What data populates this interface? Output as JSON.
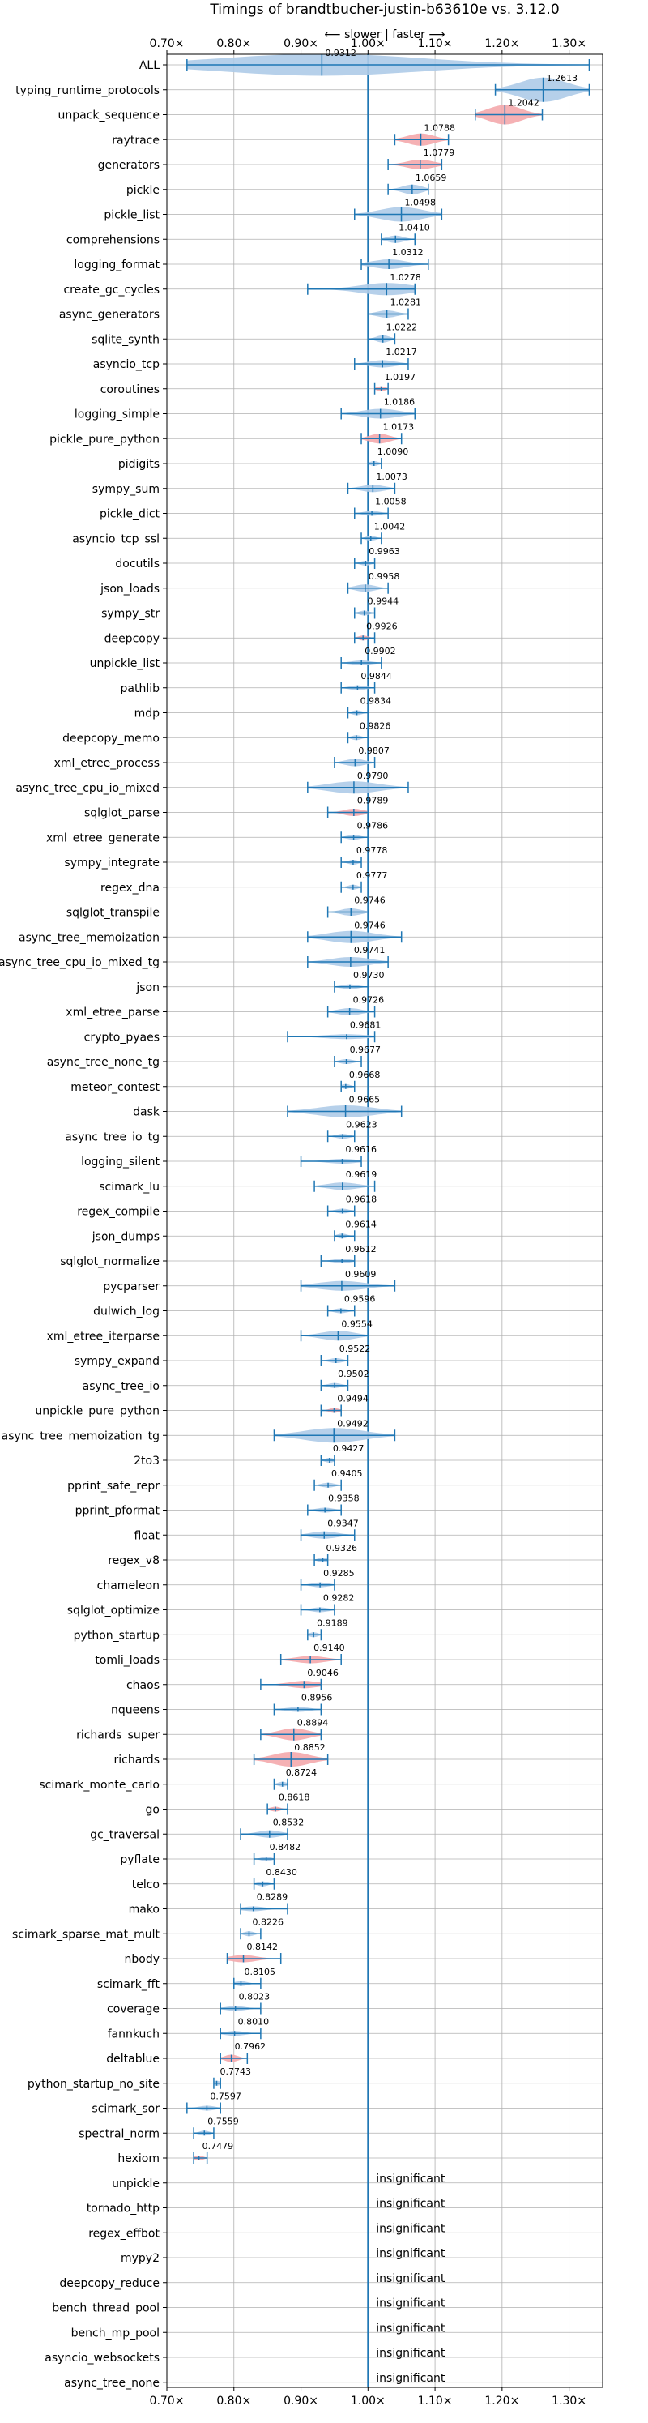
{
  "chart_data": {
    "type": "violin",
    "title": "Timings of brandtbucher-justin-b63610e vs. 3.12.0",
    "subtitle": "⟵ slower | faster ⟶",
    "xlim": [
      0.7,
      1.35
    ],
    "xticks": [
      "0.70×",
      "0.80×",
      "0.90×",
      "1.00×",
      "1.10×",
      "1.20×",
      "1.30×"
    ],
    "xtick_values": [
      0.7,
      0.8,
      0.9,
      1.0,
      1.1,
      1.2,
      1.3
    ],
    "reference_line": 1.0,
    "grid": true,
    "colors": {
      "faster": "#aecbe8",
      "slower": "#f4a8ac",
      "line": "#1f77b4",
      "grid": "#b0b0b0"
    },
    "benchmarks": [
      {
        "name": "ALL",
        "value": 0.9312,
        "label": "0.9312",
        "min": 0.73,
        "max": 1.33,
        "width": 0.09,
        "color": "blue"
      },
      {
        "name": "typing_runtime_protocols",
        "value": 1.2613,
        "label": "1.2613",
        "min": 1.19,
        "max": 1.33,
        "width": 0.1,
        "color": "blue"
      },
      {
        "name": "unpack_sequence",
        "value": 1.2042,
        "label": "1.2042",
        "min": 1.16,
        "max": 1.26,
        "width": 0.08,
        "color": "red"
      },
      {
        "name": "raytrace",
        "value": 1.0788,
        "label": "1.0788",
        "min": 1.04,
        "max": 1.12,
        "width": 0.05,
        "color": "red"
      },
      {
        "name": "generators",
        "value": 1.0779,
        "label": "1.0779",
        "min": 1.03,
        "max": 1.11,
        "width": 0.04,
        "color": "red"
      },
      {
        "name": "pickle",
        "value": 1.0659,
        "label": "1.0659",
        "min": 1.03,
        "max": 1.09,
        "width": 0.04,
        "color": "blue"
      },
      {
        "name": "pickle_list",
        "value": 1.0498,
        "label": "1.0498",
        "min": 0.98,
        "max": 1.11,
        "width": 0.06,
        "color": "blue"
      },
      {
        "name": "comprehensions",
        "value": 1.041,
        "label": "1.0410",
        "min": 1.02,
        "max": 1.07,
        "width": 0.03,
        "color": "blue"
      },
      {
        "name": "logging_format",
        "value": 1.0312,
        "label": "1.0312",
        "min": 0.99,
        "max": 1.09,
        "width": 0.04,
        "color": "blue"
      },
      {
        "name": "create_gc_cycles",
        "value": 1.0278,
        "label": "1.0278",
        "min": 0.91,
        "max": 1.07,
        "width": 0.05,
        "color": "blue"
      },
      {
        "name": "async_generators",
        "value": 1.0281,
        "label": "1.0281",
        "min": 1.0,
        "max": 1.06,
        "width": 0.03,
        "color": "blue"
      },
      {
        "name": "sqlite_synth",
        "value": 1.0222,
        "label": "1.0222",
        "min": 1.0,
        "max": 1.04,
        "width": 0.03,
        "color": "blue"
      },
      {
        "name": "asyncio_tcp",
        "value": 1.0217,
        "label": "1.0217",
        "min": 0.98,
        "max": 1.06,
        "width": 0.03,
        "color": "blue"
      },
      {
        "name": "coroutines",
        "value": 1.0197,
        "label": "1.0197",
        "min": 1.01,
        "max": 1.03,
        "width": 0.02,
        "color": "red"
      },
      {
        "name": "logging_simple",
        "value": 1.0186,
        "label": "1.0186",
        "min": 0.96,
        "max": 1.07,
        "width": 0.04,
        "color": "blue"
      },
      {
        "name": "pickle_pure_python",
        "value": 1.0173,
        "label": "1.0173",
        "min": 0.99,
        "max": 1.05,
        "width": 0.04,
        "color": "red"
      },
      {
        "name": "pidigits",
        "value": 1.009,
        "label": "1.0090",
        "min": 1.0,
        "max": 1.02,
        "width": 0.01,
        "color": "blue"
      },
      {
        "name": "sympy_sum",
        "value": 1.0073,
        "label": "1.0073",
        "min": 0.97,
        "max": 1.04,
        "width": 0.03,
        "color": "blue"
      },
      {
        "name": "pickle_dict",
        "value": 1.0058,
        "label": "1.0058",
        "min": 0.98,
        "max": 1.03,
        "width": 0.02,
        "color": "blue"
      },
      {
        "name": "asyncio_tcp_ssl",
        "value": 1.0042,
        "label": "1.0042",
        "min": 0.99,
        "max": 1.02,
        "width": 0.02,
        "color": "blue"
      },
      {
        "name": "docutils",
        "value": 0.9963,
        "label": "0.9963",
        "min": 0.98,
        "max": 1.01,
        "width": 0.02,
        "color": "blue"
      },
      {
        "name": "json_loads",
        "value": 0.9958,
        "label": "0.9958",
        "min": 0.97,
        "max": 1.03,
        "width": 0.03,
        "color": "blue"
      },
      {
        "name": "sympy_str",
        "value": 0.9944,
        "label": "0.9944",
        "min": 0.98,
        "max": 1.01,
        "width": 0.02,
        "color": "blue"
      },
      {
        "name": "deepcopy",
        "value": 0.9926,
        "label": "0.9926",
        "min": 0.98,
        "max": 1.01,
        "width": 0.02,
        "color": "red"
      },
      {
        "name": "unpickle_list",
        "value": 0.9902,
        "label": "0.9902",
        "min": 0.96,
        "max": 1.02,
        "width": 0.02,
        "color": "blue"
      },
      {
        "name": "pathlib",
        "value": 0.9844,
        "label": "0.9844",
        "min": 0.96,
        "max": 1.01,
        "width": 0.02,
        "color": "blue"
      },
      {
        "name": "mdp",
        "value": 0.9834,
        "label": "0.9834",
        "min": 0.97,
        "max": 1.0,
        "width": 0.02,
        "color": "blue"
      },
      {
        "name": "deepcopy_memo",
        "value": 0.9826,
        "label": "0.9826",
        "min": 0.97,
        "max": 1.0,
        "width": 0.02,
        "color": "blue"
      },
      {
        "name": "xml_etree_process",
        "value": 0.9807,
        "label": "0.9807",
        "min": 0.95,
        "max": 1.01,
        "width": 0.03,
        "color": "blue"
      },
      {
        "name": "async_tree_cpu_io_mixed",
        "value": 0.979,
        "label": "0.9790",
        "min": 0.91,
        "max": 1.06,
        "width": 0.05,
        "color": "blue"
      },
      {
        "name": "sqlglot_parse",
        "value": 0.9789,
        "label": "0.9789",
        "min": 0.94,
        "max": 1.0,
        "width": 0.03,
        "color": "red"
      },
      {
        "name": "xml_etree_generate",
        "value": 0.9786,
        "label": "0.9786",
        "min": 0.96,
        "max": 1.0,
        "width": 0.02,
        "color": "blue"
      },
      {
        "name": "sympy_integrate",
        "value": 0.9778,
        "label": "0.9778",
        "min": 0.96,
        "max": 0.99,
        "width": 0.02,
        "color": "blue"
      },
      {
        "name": "regex_dna",
        "value": 0.9777,
        "label": "0.9777",
        "min": 0.96,
        "max": 0.99,
        "width": 0.02,
        "color": "blue"
      },
      {
        "name": "sqlglot_transpile",
        "value": 0.9746,
        "label": "0.9746",
        "min": 0.94,
        "max": 1.0,
        "width": 0.03,
        "color": "blue"
      },
      {
        "name": "async_tree_memoization",
        "value": 0.9746,
        "label": "0.9746",
        "min": 0.91,
        "max": 1.05,
        "width": 0.05,
        "color": "blue"
      },
      {
        "name": "async_tree_cpu_io_mixed_tg",
        "value": 0.9741,
        "label": "0.9741",
        "min": 0.91,
        "max": 1.03,
        "width": 0.04,
        "color": "blue"
      },
      {
        "name": "json",
        "value": 0.973,
        "label": "0.9730",
        "min": 0.95,
        "max": 1.0,
        "width": 0.02,
        "color": "blue"
      },
      {
        "name": "xml_etree_parse",
        "value": 0.9726,
        "label": "0.9726",
        "min": 0.94,
        "max": 1.01,
        "width": 0.03,
        "color": "blue"
      },
      {
        "name": "crypto_pyaes",
        "value": 0.9681,
        "label": "0.9681",
        "min": 0.88,
        "max": 1.01,
        "width": 0.02,
        "color": "blue"
      },
      {
        "name": "async_tree_none_tg",
        "value": 0.9677,
        "label": "0.9677",
        "min": 0.95,
        "max": 0.99,
        "width": 0.02,
        "color": "blue"
      },
      {
        "name": "meteor_contest",
        "value": 0.9668,
        "label": "0.9668",
        "min": 0.96,
        "max": 0.98,
        "width": 0.02,
        "color": "blue"
      },
      {
        "name": "dask",
        "value": 0.9665,
        "label": "0.9665",
        "min": 0.88,
        "max": 1.05,
        "width": 0.05,
        "color": "blue"
      },
      {
        "name": "async_tree_io_tg",
        "value": 0.9623,
        "label": "0.9623",
        "min": 0.94,
        "max": 0.98,
        "width": 0.02,
        "color": "blue"
      },
      {
        "name": "logging_silent",
        "value": 0.9616,
        "label": "0.9616",
        "min": 0.9,
        "max": 0.99,
        "width": 0.02,
        "color": "blue"
      },
      {
        "name": "scimark_lu",
        "value": 0.9619,
        "label": "0.9619",
        "min": 0.92,
        "max": 1.01,
        "width": 0.03,
        "color": "blue"
      },
      {
        "name": "regex_compile",
        "value": 0.9618,
        "label": "0.9618",
        "min": 0.94,
        "max": 0.98,
        "width": 0.02,
        "color": "blue"
      },
      {
        "name": "json_dumps",
        "value": 0.9614,
        "label": "0.9614",
        "min": 0.95,
        "max": 0.98,
        "width": 0.02,
        "color": "blue"
      },
      {
        "name": "sqlglot_normalize",
        "value": 0.9612,
        "label": "0.9612",
        "min": 0.93,
        "max": 0.98,
        "width": 0.02,
        "color": "blue"
      },
      {
        "name": "pycparser",
        "value": 0.9609,
        "label": "0.9609",
        "min": 0.9,
        "max": 1.04,
        "width": 0.04,
        "color": "blue"
      },
      {
        "name": "dulwich_log",
        "value": 0.9596,
        "label": "0.9596",
        "min": 0.94,
        "max": 0.98,
        "width": 0.02,
        "color": "blue"
      },
      {
        "name": "xml_etree_iterparse",
        "value": 0.9554,
        "label": "0.9554",
        "min": 0.9,
        "max": 1.0,
        "width": 0.04,
        "color": "blue"
      },
      {
        "name": "sympy_expand",
        "value": 0.9522,
        "label": "0.9522",
        "min": 0.93,
        "max": 0.97,
        "width": 0.02,
        "color": "blue"
      },
      {
        "name": "async_tree_io",
        "value": 0.9502,
        "label": "0.9502",
        "min": 0.93,
        "max": 0.97,
        "width": 0.02,
        "color": "blue"
      },
      {
        "name": "unpickle_pure_python",
        "value": 0.9494,
        "label": "0.9494",
        "min": 0.93,
        "max": 0.96,
        "width": 0.02,
        "color": "red"
      },
      {
        "name": "async_tree_memoization_tg",
        "value": 0.9492,
        "label": "0.9492",
        "min": 0.86,
        "max": 1.04,
        "width": 0.06,
        "color": "blue"
      },
      {
        "name": "2to3",
        "value": 0.9427,
        "label": "0.9427",
        "min": 0.93,
        "max": 0.95,
        "width": 0.01,
        "color": "blue"
      },
      {
        "name": "pprint_safe_repr",
        "value": 0.9405,
        "label": "0.9405",
        "min": 0.92,
        "max": 0.96,
        "width": 0.02,
        "color": "blue"
      },
      {
        "name": "pprint_pformat",
        "value": 0.9358,
        "label": "0.9358",
        "min": 0.91,
        "max": 0.96,
        "width": 0.02,
        "color": "blue"
      },
      {
        "name": "float",
        "value": 0.9347,
        "label": "0.9347",
        "min": 0.9,
        "max": 0.98,
        "width": 0.03,
        "color": "blue"
      },
      {
        "name": "regex_v8",
        "value": 0.9326,
        "label": "0.9326",
        "min": 0.92,
        "max": 0.94,
        "width": 0.01,
        "color": "blue"
      },
      {
        "name": "chameleon",
        "value": 0.9285,
        "label": "0.9285",
        "min": 0.9,
        "max": 0.95,
        "width": 0.02,
        "color": "blue"
      },
      {
        "name": "sqlglot_optimize",
        "value": 0.9282,
        "label": "0.9282",
        "min": 0.9,
        "max": 0.95,
        "width": 0.02,
        "color": "blue"
      },
      {
        "name": "python_startup",
        "value": 0.9189,
        "label": "0.9189",
        "min": 0.91,
        "max": 0.93,
        "width": 0.02,
        "color": "blue"
      },
      {
        "name": "tomli_loads",
        "value": 0.914,
        "label": "0.9140",
        "min": 0.87,
        "max": 0.96,
        "width": 0.03,
        "color": "red"
      },
      {
        "name": "chaos",
        "value": 0.9046,
        "label": "0.9046",
        "min": 0.84,
        "max": 0.93,
        "width": 0.03,
        "color": "red"
      },
      {
        "name": "nqueens",
        "value": 0.8956,
        "label": "0.8956",
        "min": 0.86,
        "max": 0.93,
        "width": 0.02,
        "color": "blue"
      },
      {
        "name": "richards_super",
        "value": 0.8894,
        "label": "0.8894",
        "min": 0.84,
        "max": 0.93,
        "width": 0.05,
        "color": "red"
      },
      {
        "name": "richards",
        "value": 0.8852,
        "label": "0.8852",
        "min": 0.83,
        "max": 0.94,
        "width": 0.06,
        "color": "red"
      },
      {
        "name": "scimark_monte_carlo",
        "value": 0.8724,
        "label": "0.8724",
        "min": 0.86,
        "max": 0.88,
        "width": 0.02,
        "color": "blue"
      },
      {
        "name": "go",
        "value": 0.8618,
        "label": "0.8618",
        "min": 0.85,
        "max": 0.88,
        "width": 0.02,
        "color": "red"
      },
      {
        "name": "gc_traversal",
        "value": 0.8532,
        "label": "0.8532",
        "min": 0.81,
        "max": 0.88,
        "width": 0.03,
        "color": "blue"
      },
      {
        "name": "pyflate",
        "value": 0.8482,
        "label": "0.8482",
        "min": 0.83,
        "max": 0.86,
        "width": 0.02,
        "color": "blue"
      },
      {
        "name": "telco",
        "value": 0.843,
        "label": "0.8430",
        "min": 0.83,
        "max": 0.86,
        "width": 0.02,
        "color": "blue"
      },
      {
        "name": "mako",
        "value": 0.8289,
        "label": "0.8289",
        "min": 0.81,
        "max": 0.88,
        "width": 0.02,
        "color": "blue"
      },
      {
        "name": "scimark_sparse_mat_mult",
        "value": 0.8226,
        "label": "0.8226",
        "min": 0.81,
        "max": 0.84,
        "width": 0.02,
        "color": "blue"
      },
      {
        "name": "nbody",
        "value": 0.8142,
        "label": "0.8142",
        "min": 0.79,
        "max": 0.87,
        "width": 0.03,
        "color": "red"
      },
      {
        "name": "scimark_fft",
        "value": 0.8105,
        "label": "0.8105",
        "min": 0.8,
        "max": 0.84,
        "width": 0.02,
        "color": "blue"
      },
      {
        "name": "coverage",
        "value": 0.8023,
        "label": "0.8023",
        "min": 0.78,
        "max": 0.84,
        "width": 0.02,
        "color": "blue"
      },
      {
        "name": "fannkuch",
        "value": 0.801,
        "label": "0.8010",
        "min": 0.78,
        "max": 0.84,
        "width": 0.02,
        "color": "blue"
      },
      {
        "name": "deltablue",
        "value": 0.7962,
        "label": "0.7962",
        "min": 0.78,
        "max": 0.82,
        "width": 0.03,
        "color": "red"
      },
      {
        "name": "python_startup_no_site",
        "value": 0.7743,
        "label": "0.7743",
        "min": 0.77,
        "max": 0.78,
        "width": 0.01,
        "color": "blue"
      },
      {
        "name": "scimark_sor",
        "value": 0.7597,
        "label": "0.7597",
        "min": 0.73,
        "max": 0.78,
        "width": 0.02,
        "color": "blue"
      },
      {
        "name": "spectral_norm",
        "value": 0.7559,
        "label": "0.7559",
        "min": 0.74,
        "max": 0.77,
        "width": 0.02,
        "color": "blue"
      },
      {
        "name": "hexiom",
        "value": 0.7479,
        "label": "0.7479",
        "min": 0.74,
        "max": 0.76,
        "width": 0.01,
        "color": "red"
      },
      {
        "name": "unpickle",
        "label": "insignificant",
        "insignificant": true
      },
      {
        "name": "tornado_http",
        "label": "insignificant",
        "insignificant": true
      },
      {
        "name": "regex_effbot",
        "label": "insignificant",
        "insignificant": true
      },
      {
        "name": "mypy2",
        "label": "insignificant",
        "insignificant": true
      },
      {
        "name": "deepcopy_reduce",
        "label": "insignificant",
        "insignificant": true
      },
      {
        "name": "bench_thread_pool",
        "label": "insignificant",
        "insignificant": true
      },
      {
        "name": "bench_mp_pool",
        "label": "insignificant",
        "insignificant": true
      },
      {
        "name": "asyncio_websockets",
        "label": "insignificant",
        "insignificant": true
      },
      {
        "name": "async_tree_none",
        "label": "insignificant",
        "insignificant": true
      }
    ]
  }
}
